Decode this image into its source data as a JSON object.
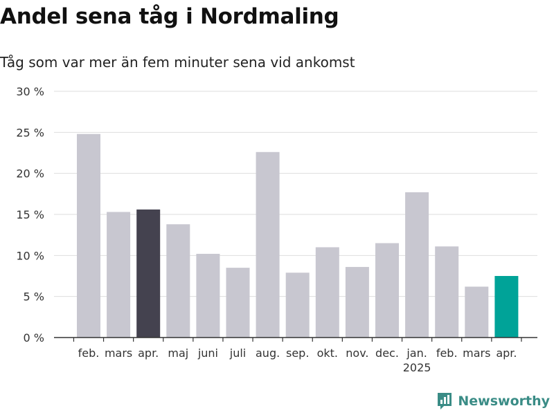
{
  "header": {
    "title": "Andel sena tåg i Nordmaling",
    "subtitle": "Tåg som var mer än fem minuter sena vid ankomst"
  },
  "brand": {
    "name": "Newsworthy",
    "icon": "bar-chart-logo-icon",
    "color": "#3a8c86"
  },
  "colors": {
    "bar_default": "#c8c7d0",
    "bar_previous_year": "#44424f",
    "bar_latest": "#00a398",
    "grid": "#dddddd",
    "axis": "#333333"
  },
  "chart_data": {
    "type": "bar",
    "title": "Andel sena tåg i Nordmaling",
    "subtitle": "Tåg som var mer än fem minuter sena vid ankomst",
    "xlabel": "",
    "ylabel": "",
    "categories": [
      "feb.",
      "mars",
      "apr.",
      "maj",
      "juni",
      "juli",
      "aug.",
      "sep.",
      "okt.",
      "nov.",
      "dec.",
      "jan.",
      "feb.",
      "mars",
      "apr."
    ],
    "year_labels": [
      {
        "index": 11,
        "label": "2025"
      }
    ],
    "values": [
      24.8,
      15.3,
      15.6,
      13.8,
      10.2,
      8.5,
      22.6,
      7.9,
      11.0,
      8.6,
      11.5,
      17.7,
      11.1,
      6.2,
      7.5
    ],
    "highlight": {
      "previous_year": 2,
      "latest": 14
    },
    "ylim": [
      0,
      30
    ],
    "yticks": [
      0,
      5,
      10,
      15,
      20,
      25,
      30
    ],
    "ytick_labels": [
      "0 %",
      "5 %",
      "10 %",
      "15 %",
      "20 %",
      "25 %",
      "30 %"
    ],
    "grid": true,
    "legend": "none"
  }
}
